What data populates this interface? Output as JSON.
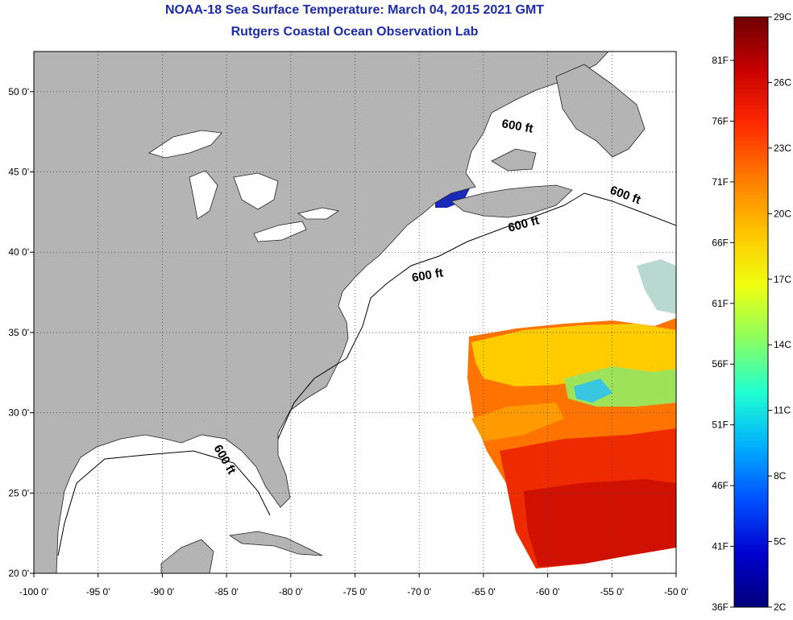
{
  "header": {
    "title": "NOAA-18 Sea Surface Temperature:  March 04, 2015 2021 GMT",
    "subtitle": "Rutgers Coastal Ocean Observation Lab"
  },
  "map": {
    "lon_range": [
      -100,
      -50
    ],
    "lat_range": [
      20,
      52.5
    ],
    "lon_ticks": [
      -100,
      -95,
      -90,
      -85,
      -80,
      -75,
      -70,
      -65,
      -60,
      -55,
      -50
    ],
    "lon_tick_labels": [
      "-100 0'",
      "-95 0'",
      "-90 0'",
      "-85 0'",
      "-80 0'",
      "-75 0'",
      "-70 0'",
      "-65 0'",
      "-60 0'",
      "-55 0'",
      "-50 0'"
    ],
    "lat_ticks": [
      20,
      25,
      30,
      35,
      40,
      45,
      50
    ],
    "lat_tick_labels": [
      "20 0'",
      "25 0'",
      "30 0'",
      "35 0'",
      "40 0'",
      "45 0'",
      "50 0'"
    ],
    "grid": "dotted",
    "land_color": "#b4b4b4",
    "no_data_color": "#ffffff",
    "contour_labels": [
      "600 ft",
      "600 ft",
      "600 ft",
      "600 ft",
      "600 ft"
    ]
  },
  "colorbar": {
    "celsius_labels": [
      "29C",
      "26C",
      "23C",
      "20C",
      "17C",
      "14C",
      "11C",
      "8C",
      "5C",
      "2C"
    ],
    "fahrenheit_labels": [
      "81F",
      "76F",
      "71F",
      "66F",
      "61F",
      "56F",
      "51F",
      "46F",
      "41F",
      "36F"
    ],
    "colors": [
      "#6e0000",
      "#c80000",
      "#ff2a00",
      "#ff7a00",
      "#ffc400",
      "#f0ff10",
      "#8cff60",
      "#20ffd0",
      "#00b0ff",
      "#0050ff",
      "#0000d0",
      "#00007a"
    ]
  }
}
